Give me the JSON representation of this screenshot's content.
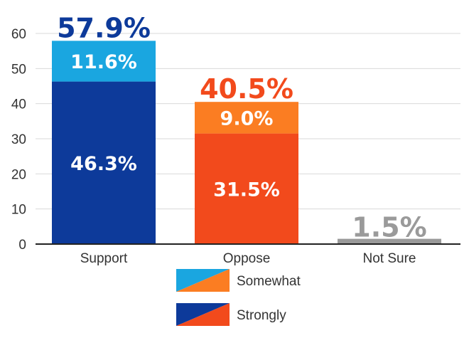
{
  "chart_data": {
    "type": "bar",
    "stacked": true,
    "categories": [
      "Support",
      "Oppose",
      "Not Sure"
    ],
    "ylim": [
      0,
      60
    ],
    "yticks": [
      0,
      10,
      20,
      30,
      40,
      50,
      60
    ],
    "grid": true,
    "stacks": [
      {
        "category": "Support",
        "total_label": "57.9%",
        "total_color": "#0d3a9a",
        "segments": [
          {
            "series": "Strongly",
            "value": 46.3,
            "label": "46.3%",
            "color": "#0d3a9a"
          },
          {
            "series": "Somewhat",
            "value": 11.6,
            "label": "11.6%",
            "color": "#1aa6e0"
          }
        ]
      },
      {
        "category": "Oppose",
        "total_label": "40.5%",
        "total_color": "#f24a1c",
        "segments": [
          {
            "series": "Strongly",
            "value": 31.5,
            "label": "31.5%",
            "color": "#f24a1c"
          },
          {
            "series": "Somewhat",
            "value": 9.0,
            "label": "9.0%",
            "color": "#fb7d22"
          }
        ]
      },
      {
        "category": "Not Sure",
        "total_label": "1.5%",
        "total_color": "#9a9a9a",
        "segments": [
          {
            "series": "",
            "value": 1.5,
            "label": "",
            "color": "#9a9a9a"
          }
        ]
      }
    ],
    "legend": {
      "position": "bottom-center",
      "items": [
        {
          "label": "Somewhat",
          "colors": [
            "#1aa6e0",
            "#fb7d22"
          ]
        },
        {
          "label": "Strongly",
          "colors": [
            "#0d3a9a",
            "#f24a1c"
          ]
        }
      ]
    }
  }
}
